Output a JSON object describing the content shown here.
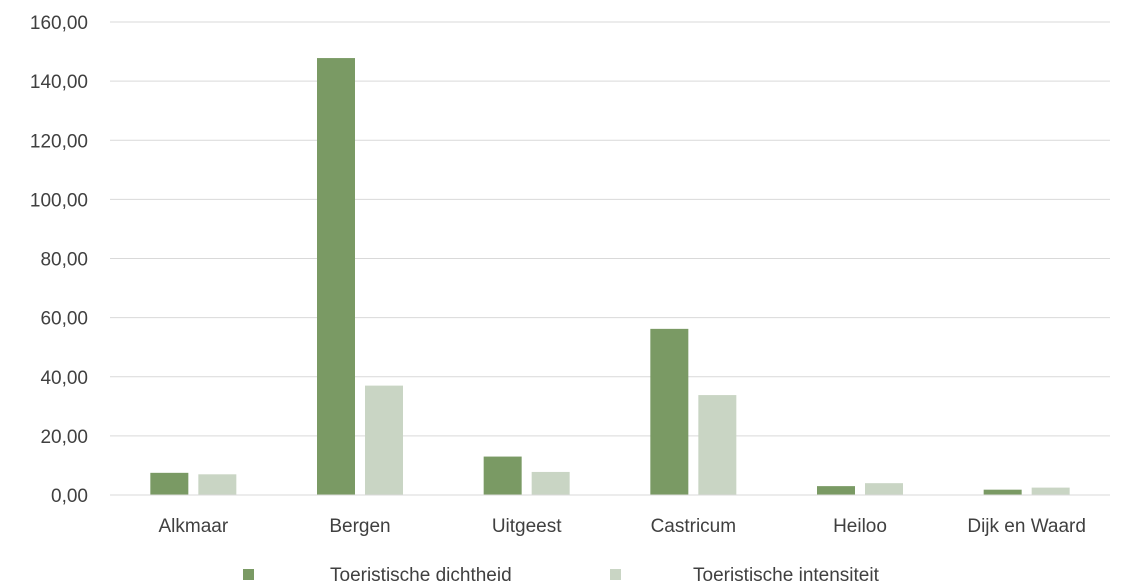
{
  "chart_data": {
    "type": "bar",
    "title": "",
    "xlabel": "",
    "ylabel": "",
    "categories": [
      "Alkmaar",
      "Bergen",
      "Uitgeest",
      "Castricum",
      "Heiloo",
      "Dijk en Waard"
    ],
    "series": [
      {
        "name": "Toeristische dichtheid",
        "color": "#7a9a64",
        "values": [
          7.5,
          147.8,
          13.0,
          56.2,
          3.0,
          1.8
        ]
      },
      {
        "name": "Toeristische intensiteit",
        "color": "#c9d5c4",
        "values": [
          7.0,
          37.0,
          7.8,
          33.8,
          4.0,
          2.5
        ]
      }
    ],
    "ylim": [
      0,
      160
    ],
    "yticks": [
      "0,00",
      "20,00",
      "40,00",
      "60,00",
      "80,00",
      "100,00",
      "120,00",
      "140,00",
      "160,00"
    ],
    "grid": true,
    "legend_position": "bottom"
  }
}
